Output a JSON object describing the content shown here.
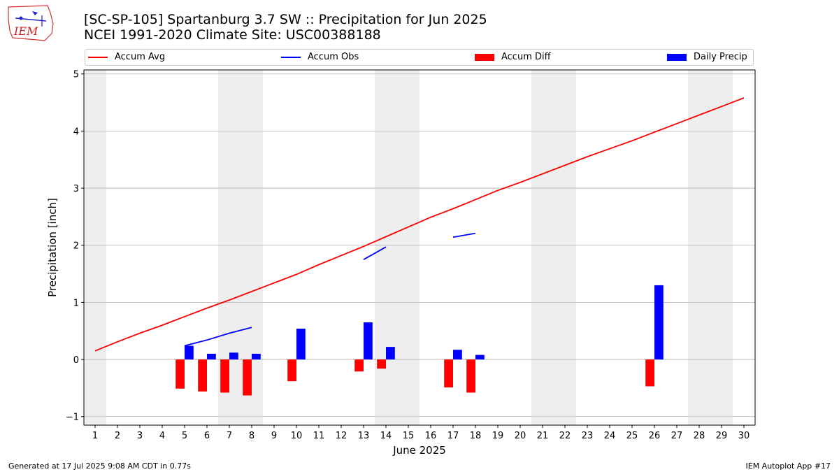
{
  "header": {
    "title_line1": "[SC-SP-105] Spartanburg 3.7 SW :: Precipitation for Jun 2025",
    "title_line2": "NCEI 1991-2020 Climate Site: USC00388188",
    "logo_text": "IEM"
  },
  "footer": {
    "left": "Generated at 17 Jul 2025 9:08 AM CDT in 0.77s",
    "right": "IEM Autoplot App #17"
  },
  "colors": {
    "accum_avg": "#ff0000",
    "accum_obs": "#0000ff",
    "accum_diff": "#ff0000",
    "daily_precip": "#0000ff",
    "weekend_shade": "#eeeeee",
    "grid": "#b0b0b0"
  },
  "chart_data": {
    "type": "bar",
    "xlabel": "June 2025",
    "ylabel": "Precipitation [inch]",
    "ylim": [
      -1.15,
      5.07
    ],
    "xlim": [
      0.5,
      30.5
    ],
    "yticks": [
      -1,
      0,
      1,
      2,
      3,
      4,
      5
    ],
    "xticks": [
      1,
      2,
      3,
      4,
      5,
      6,
      7,
      8,
      9,
      10,
      11,
      12,
      13,
      14,
      15,
      16,
      17,
      18,
      19,
      20,
      21,
      22,
      23,
      24,
      25,
      26,
      27,
      28,
      29,
      30
    ],
    "grid": "horizontal",
    "legend_position": "top",
    "weekends": [
      [
        1,
        1
      ],
      [
        7,
        8
      ],
      [
        14,
        15
      ],
      [
        21,
        22
      ],
      [
        28,
        29
      ]
    ],
    "legend": [
      "Accum Avg",
      "Accum Obs",
      "Accum Diff",
      "Daily Precip"
    ],
    "accum_avg": {
      "name": "Accum Avg",
      "x": [
        1,
        2,
        3,
        4,
        5,
        6,
        7,
        8,
        9,
        10,
        11,
        12,
        13,
        14,
        15,
        16,
        17,
        18,
        19,
        20,
        21,
        22,
        23,
        24,
        25,
        26,
        27,
        28,
        29,
        30
      ],
      "values": [
        0.15,
        0.31,
        0.46,
        0.6,
        0.75,
        0.9,
        1.04,
        1.19,
        1.34,
        1.49,
        1.66,
        1.82,
        1.98,
        2.15,
        2.32,
        2.49,
        2.64,
        2.8,
        2.96,
        3.1,
        3.25,
        3.4,
        3.55,
        3.69,
        3.83,
        3.98,
        4.13,
        4.28,
        4.43,
        4.58
      ]
    },
    "accum_obs": {
      "name": "Accum Obs",
      "segments": [
        {
          "x": [
            5,
            6,
            7,
            8
          ],
          "values": [
            0.24,
            0.34,
            0.46,
            0.56
          ]
        },
        {
          "x": [
            13,
            14
          ],
          "values": [
            1.75,
            1.97
          ]
        },
        {
          "x": [
            17,
            18
          ],
          "values": [
            2.14,
            2.21
          ]
        }
      ]
    },
    "accum_diff": {
      "name": "Accum Diff",
      "x": [
        5,
        6,
        7,
        8,
        10,
        13,
        14,
        17,
        18,
        26
      ],
      "values": [
        -0.51,
        -0.56,
        -0.58,
        -0.63,
        -0.38,
        -0.21,
        -0.16,
        -0.49,
        -0.58,
        -0.47
      ]
    },
    "daily_precip": {
      "name": "Daily Precip",
      "x": [
        5,
        6,
        7,
        8,
        10,
        13,
        14,
        17,
        18,
        26
      ],
      "values": [
        0.24,
        0.1,
        0.12,
        0.1,
        0.54,
        0.65,
        0.22,
        0.17,
        0.08,
        1.3
      ]
    }
  }
}
